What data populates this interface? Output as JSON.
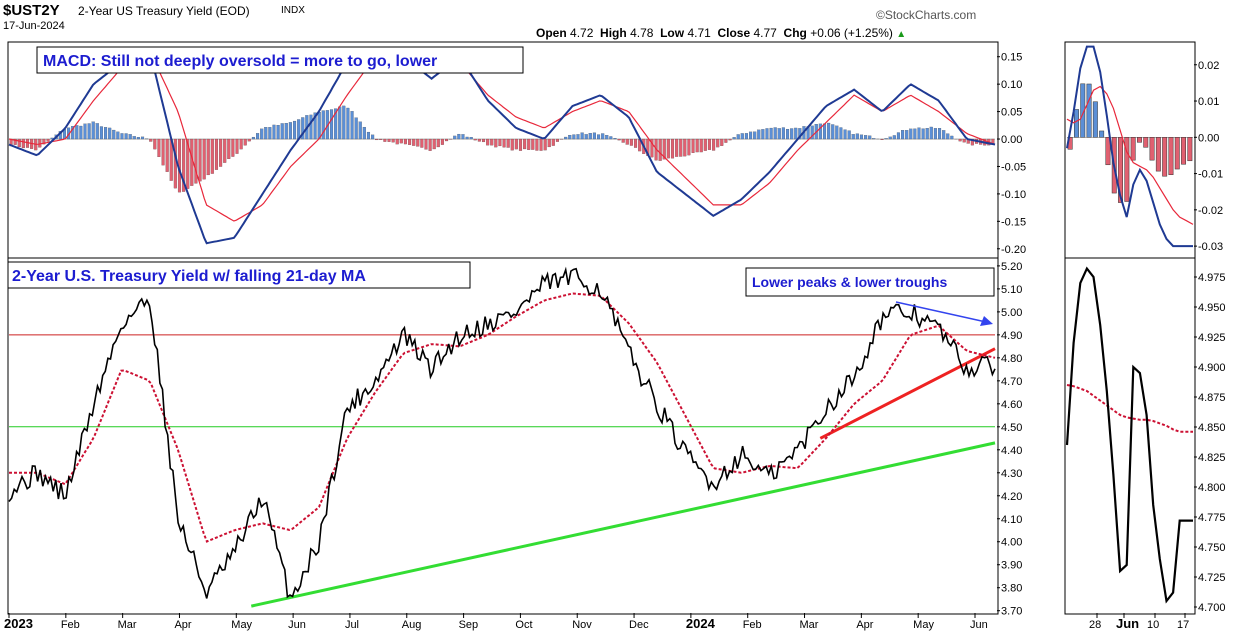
{
  "header": {
    "symbol": "$UST2Y",
    "name": "2-Year US Treasury Yield (EOD)",
    "exchange": "INDX",
    "date": "17-Jun-2024",
    "brand": "©StockCharts.com",
    "ohlc": {
      "open_label": "Open",
      "open": "4.72",
      "high_label": "High",
      "high": "4.78",
      "low_label": "Low",
      "low": "4.71",
      "close_label": "Close",
      "close": "4.77",
      "chg_label": "Chg",
      "chg": "+0.06 (+1.25%)",
      "chg_arrow": "▲"
    }
  },
  "colors": {
    "macd_line": "#1f3a93",
    "signal_line": "#e8283b",
    "hist_pos": "#5b8fd6",
    "hist_neg": "#e06070",
    "price_line": "#000000",
    "ma_line": "#cc1133",
    "red_hline": "#cc2222",
    "green_hline": "#22cc22",
    "green_trend": "#33dd33",
    "red_trend": "#ee2222",
    "annotation_text": "#1c1cd0",
    "arrow": "#3344ee"
  },
  "chart_data": [
    {
      "type": "line",
      "panel": "macd-main",
      "title": "MACD: Still not deeply oversold = more to go, lower",
      "ylim": [
        -0.215,
        0.175
      ],
      "yticks": [
        "0.15",
        "0.10",
        "0.05",
        "0.00",
        "-0.05",
        "-0.10",
        "-0.15",
        "-0.20"
      ],
      "x": [
        0,
        0.5,
        1,
        1.5,
        2,
        2.5,
        3,
        3.5,
        4,
        4.5,
        5,
        5.5,
        6,
        6.5,
        7,
        7.5,
        8,
        8.5,
        9,
        9.5,
        10,
        10.5,
        11,
        11.5,
        12,
        12.5,
        13,
        13.5,
        14,
        14.5,
        15,
        15.5,
        16,
        16.5,
        17,
        17.5
      ],
      "series": [
        {
          "key": "macd",
          "values": [
            -0.01,
            -0.03,
            0.02,
            0.1,
            0.14,
            0.16,
            -0.05,
            -0.19,
            -0.18,
            -0.1,
            -0.02,
            0.05,
            0.14,
            0.15,
            0.15,
            0.11,
            0.15,
            0.07,
            0.02,
            0.0,
            0.06,
            0.08,
            0.04,
            -0.06,
            -0.1,
            -0.14,
            -0.11,
            -0.06,
            0.0,
            0.06,
            0.09,
            0.05,
            0.1,
            0.07,
            0.0,
            -0.01
          ]
        },
        {
          "key": "signal",
          "values": [
            0.0,
            -0.01,
            0.0,
            0.07,
            0.13,
            0.16,
            0.05,
            -0.12,
            -0.15,
            -0.12,
            -0.05,
            0.0,
            0.08,
            0.15,
            0.16,
            0.13,
            0.14,
            0.08,
            0.04,
            0.02,
            0.05,
            0.07,
            0.05,
            -0.02,
            -0.07,
            -0.12,
            -0.12,
            -0.08,
            -0.02,
            0.03,
            0.08,
            0.05,
            0.08,
            0.05,
            0.01,
            -0.01
          ]
        },
        {
          "key": "hist",
          "values": [
            -0.01,
            -0.02,
            0.02,
            0.03,
            0.01,
            0.0,
            -0.1,
            -0.07,
            -0.03,
            0.02,
            0.03,
            0.05,
            0.06,
            0.0,
            -0.01,
            -0.02,
            0.01,
            -0.01,
            -0.02,
            -0.02,
            0.01,
            0.01,
            -0.01,
            -0.04,
            -0.03,
            -0.02,
            0.01,
            0.02,
            0.02,
            0.03,
            0.01,
            0.0,
            0.02,
            0.02,
            -0.01,
            -0.01
          ]
        }
      ]
    },
    {
      "type": "line",
      "panel": "price-main",
      "title": "2-Year U.S. Treasury Yield w/ falling 21-day MA",
      "annotation": "Lower peaks & lower troughs",
      "ylim": [
        3.69,
        5.23
      ],
      "yticks": [
        "5.20",
        "5.10",
        "5.00",
        "4.90",
        "4.80",
        "4.70",
        "4.60",
        "4.50",
        "4.40",
        "4.30",
        "4.20",
        "4.10",
        "4.00",
        "3.90",
        "3.80",
        "3.70"
      ],
      "xticks": [
        "2023",
        "Feb",
        "Mar",
        "Apr",
        "May",
        "Jun",
        "Jul",
        "Aug",
        "Sep",
        "Oct",
        "Nov",
        "Dec",
        "2024",
        "Feb",
        "Mar",
        "Apr",
        "May",
        "Jun"
      ],
      "x": [
        0,
        0.5,
        1,
        1.5,
        2,
        2.5,
        3,
        3.5,
        4,
        4.5,
        5,
        5.5,
        6,
        6.5,
        7,
        7.5,
        8,
        8.5,
        9,
        9.5,
        10,
        10.5,
        11,
        11.5,
        12,
        12.5,
        13,
        13.5,
        14,
        14.5,
        15,
        15.5,
        16,
        16.5,
        17,
        17.5
      ],
      "series": [
        {
          "key": "yield",
          "values": [
            4.22,
            4.3,
            4.2,
            4.6,
            4.95,
            5.06,
            4.1,
            3.78,
            3.95,
            4.2,
            3.75,
            4.0,
            4.58,
            4.7,
            4.9,
            4.75,
            4.9,
            4.95,
            5.0,
            5.12,
            5.15,
            5.1,
            4.82,
            4.6,
            4.38,
            4.25,
            4.38,
            4.28,
            4.4,
            4.58,
            4.72,
            4.98,
            5.0,
            4.93,
            4.75,
            4.77
          ]
        },
        {
          "key": "ma21",
          "values": [
            4.3,
            4.3,
            4.25,
            4.45,
            4.75,
            4.7,
            4.4,
            4.0,
            4.05,
            4.08,
            4.05,
            4.15,
            4.45,
            4.65,
            4.82,
            4.86,
            4.85,
            4.9,
            4.98,
            5.05,
            5.08,
            5.07,
            4.95,
            4.78,
            4.55,
            4.32,
            4.3,
            4.33,
            4.32,
            4.45,
            4.6,
            4.7,
            4.9,
            4.94,
            4.83,
            4.8
          ]
        }
      ],
      "hlines": [
        4.9,
        4.5
      ],
      "trendlines": [
        {
          "key": "green-support",
          "from": [
            4.3,
            3.72
          ],
          "to": [
            17.5,
            4.43
          ]
        },
        {
          "key": "red-support",
          "from": [
            14.4,
            4.45
          ],
          "to": [
            17.5,
            4.84
          ]
        }
      ]
    },
    {
      "type": "line",
      "panel": "macd-zoom",
      "ylim": [
        -0.033,
        0.026
      ],
      "yticks": [
        "0.02",
        "0.01",
        "0.00",
        "-0.01",
        "-0.02",
        "-0.03"
      ],
      "x": [
        0,
        1,
        2,
        3,
        4,
        5,
        6,
        7,
        8,
        9,
        10,
        11,
        12,
        13,
        14,
        15,
        16,
        17,
        18,
        19
      ],
      "series": [
        {
          "key": "macd",
          "values": [
            -0.003,
            0.007,
            0.019,
            0.025,
            0.025,
            0.018,
            0.006,
            -0.007,
            -0.016,
            -0.022,
            -0.013,
            -0.009,
            -0.012,
            -0.018,
            -0.024,
            -0.028,
            -0.03,
            -0.03,
            -0.03,
            -0.03
          ]
        },
        {
          "key": "signal",
          "values": [
            0.005,
            0.004,
            0.005,
            0.009,
            0.013,
            0.014,
            0.012,
            0.008,
            0.002,
            -0.004,
            -0.007,
            -0.008,
            -0.009,
            -0.011,
            -0.014,
            -0.017,
            -0.02,
            -0.022,
            -0.023,
            -0.024
          ]
        },
        {
          "key": "hist",
          "values": [
            -0.009,
            0.003,
            0.014,
            0.016,
            0.012,
            0.004,
            -0.006,
            -0.015,
            -0.018,
            -0.018,
            -0.006,
            -0.001,
            -0.003,
            -0.007,
            -0.01,
            -0.011,
            -0.01,
            -0.008,
            -0.007,
            -0.006
          ]
        }
      ]
    },
    {
      "type": "line",
      "panel": "price-zoom",
      "ylim": [
        4.695,
        4.99
      ],
      "yticks": [
        "4.975",
        "4.950",
        "4.925",
        "4.900",
        "4.875",
        "4.850",
        "4.825",
        "4.800",
        "4.775",
        "4.750",
        "4.725",
        "4.700"
      ],
      "xticks": [
        "28",
        "Jun",
        "10",
        "17"
      ],
      "x": [
        0,
        1,
        2,
        3,
        4,
        5,
        6,
        7,
        8,
        9,
        10,
        11,
        12,
        13,
        14,
        15,
        16,
        17,
        18,
        19
      ],
      "series": [
        {
          "key": "yield",
          "values": [
            4.835,
            4.92,
            4.97,
            4.982,
            4.975,
            4.935,
            4.88,
            4.81,
            4.73,
            4.735,
            4.9,
            4.895,
            4.86,
            4.785,
            4.74,
            4.705,
            4.712,
            4.772,
            4.772,
            4.772
          ]
        },
        {
          "key": "ma21",
          "values": [
            4.885,
            4.884,
            4.882,
            4.88,
            4.876,
            4.872,
            4.868,
            4.864,
            4.86,
            4.858,
            4.857,
            4.856,
            4.856,
            4.855,
            4.853,
            4.851,
            4.848,
            4.846,
            4.846,
            4.846
          ]
        }
      ]
    }
  ]
}
